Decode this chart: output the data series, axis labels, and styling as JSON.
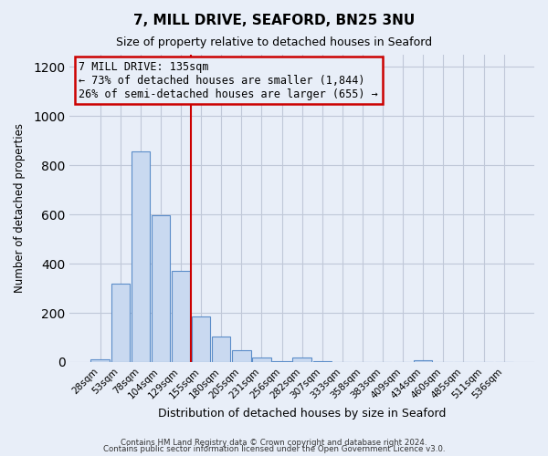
{
  "title": "7, MILL DRIVE, SEAFORD, BN25 3NU",
  "subtitle": "Size of property relative to detached houses in Seaford",
  "xlabel": "Distribution of detached houses by size in Seaford",
  "ylabel": "Number of detached properties",
  "bar_labels": [
    "28sqm",
    "53sqm",
    "78sqm",
    "104sqm",
    "129sqm",
    "155sqm",
    "180sqm",
    "205sqm",
    "231sqm",
    "256sqm",
    "282sqm",
    "307sqm",
    "333sqm",
    "358sqm",
    "383sqm",
    "409sqm",
    "434sqm",
    "460sqm",
    "485sqm",
    "511sqm",
    "536sqm"
  ],
  "bar_values": [
    10,
    318,
    858,
    598,
    370,
    185,
    103,
    47,
    18,
    5,
    20,
    5,
    0,
    0,
    0,
    0,
    8,
    0,
    0,
    0,
    0
  ],
  "bar_color": "#c9d9f0",
  "bar_edge_color": "#5b8dc9",
  "vline_x": 4.5,
  "vline_color": "#cc0000",
  "annotation_line1": "7 MILL DRIVE: 135sqm",
  "annotation_line2": "← 73% of detached houses are smaller (1,844)",
  "annotation_line3": "26% of semi-detached houses are larger (655) →",
  "annotation_box_color": "#cc0000",
  "ylim": [
    0,
    1250
  ],
  "yticks": [
    0,
    200,
    400,
    600,
    800,
    1000,
    1200
  ],
  "grid_color": "#c0c8d8",
  "bg_color": "#e8eef8",
  "footer1": "Contains HM Land Registry data © Crown copyright and database right 2024.",
  "footer2": "Contains public sector information licensed under the Open Government Licence v3.0.",
  "bar_width": 0.92
}
